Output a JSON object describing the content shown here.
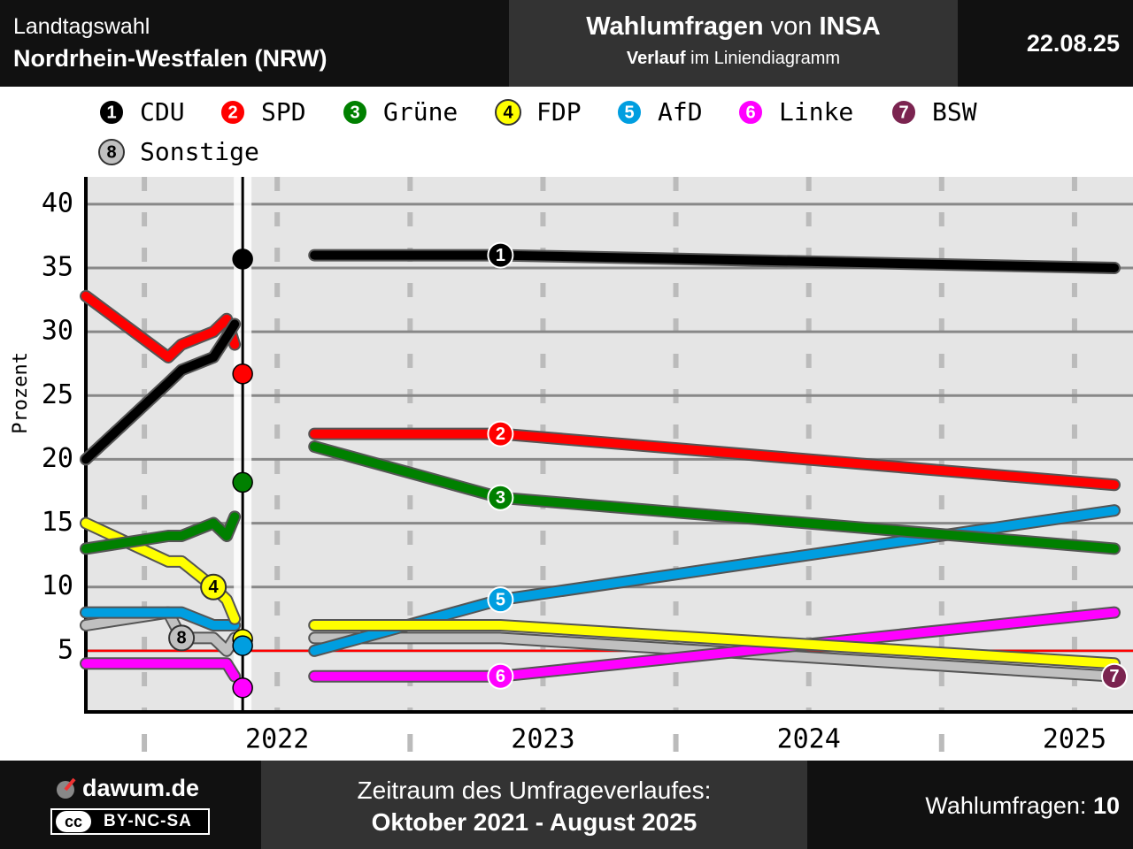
{
  "header": {
    "election": "Landtagswahl",
    "region": "Nordrhein-Westfalen (NRW)",
    "title_bold": "Wahlumfragen",
    "title_mid": "von",
    "title_institute": "INSA",
    "subtitle_bold": "Verlauf",
    "subtitle_rest": "im Liniendiagramm",
    "date": "22.08.25"
  },
  "footer": {
    "site": "dawum.de",
    "license_icon": "cc",
    "license": "BY-NC-SA",
    "period_label": "Zeitraum des Umfrageverlaufes:",
    "period": "Oktober 2021 - August 2025",
    "count_label": "Wahlumfragen:",
    "count": 10
  },
  "chart_data": {
    "type": "line",
    "ylabel": "Prozent",
    "x": [
      2021.78,
      2022.09,
      2022.14,
      2022.26,
      2022.31,
      2022.34,
      2022.37,
      2022.64,
      2023.34,
      2025.65
    ],
    "xlim": [
      2021.78,
      2025.72
    ],
    "xticks": [
      {
        "value": 2022.5,
        "label": "2022"
      },
      {
        "value": 2023.5,
        "label": "2023"
      },
      {
        "value": 2024.5,
        "label": "2024"
      },
      {
        "value": 2025.5,
        "label": "2025"
      }
    ],
    "ylim": [
      0,
      42
    ],
    "yticks": [
      5,
      10,
      15,
      20,
      25,
      30,
      35,
      40
    ],
    "grid": true,
    "threshold": 5,
    "threshold_color": "#ff0000",
    "election_x": 2022.37,
    "series": [
      {
        "name": "CDU",
        "number": 1,
        "color": "#000000",
        "values": [
          20,
          26,
          27,
          28,
          29.6,
          30.6,
          null,
          36,
          36,
          35
        ],
        "election": 35.7
      },
      {
        "name": "SPD",
        "number": 2,
        "color": "#ff0000",
        "values": [
          32.8,
          28,
          29,
          30,
          31,
          29,
          null,
          22,
          22,
          18
        ],
        "election": 26.7
      },
      {
        "name": "Grüne",
        "number": 3,
        "color": "#008000",
        "values": [
          13,
          14,
          14,
          15,
          14,
          15.5,
          null,
          21,
          17,
          13
        ],
        "election": 18.2
      },
      {
        "name": "FDP",
        "number": 4,
        "color": "#ffff00",
        "values": [
          15,
          12,
          12,
          10,
          9,
          7.5,
          null,
          7,
          7,
          4
        ],
        "election": 5.9
      },
      {
        "name": "AfD",
        "number": 5,
        "color": "#009ee0",
        "values": [
          8,
          8,
          8,
          7,
          7,
          7,
          null,
          5,
          9,
          16
        ],
        "election": 5.4
      },
      {
        "name": "Linke",
        "number": 6,
        "color": "#ff00ff",
        "values": [
          4,
          4,
          4,
          4,
          4,
          3,
          null,
          3,
          3,
          8
        ],
        "election": 2.1
      },
      {
        "name": "BSW",
        "number": 7,
        "color": "#7b2450",
        "values": [
          null,
          null,
          null,
          null,
          null,
          null,
          null,
          null,
          null,
          3
        ],
        "election": null
      },
      {
        "name": "Sonstige",
        "number": 8,
        "color": "#c0c0c0",
        "values": [
          7,
          8,
          6,
          6,
          5,
          6,
          null,
          6,
          6,
          3
        ],
        "election": null
      }
    ]
  }
}
